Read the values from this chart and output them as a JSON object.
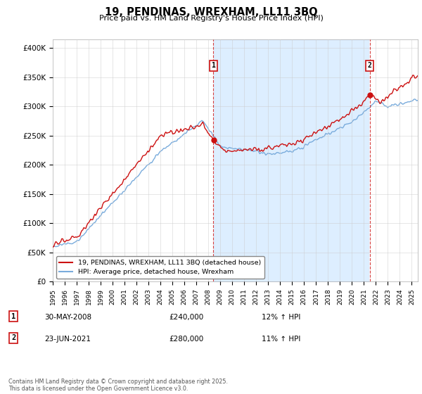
{
  "title": "19, PENDINAS, WREXHAM, LL11 3BQ",
  "subtitle": "Price paid vs. HM Land Registry's House Price Index (HPI)",
  "ylabel_ticks": [
    "£0",
    "£50K",
    "£100K",
    "£150K",
    "£200K",
    "£250K",
    "£300K",
    "£350K",
    "£400K"
  ],
  "ytick_values": [
    0,
    50000,
    100000,
    150000,
    200000,
    250000,
    300000,
    350000,
    400000
  ],
  "ylim": [
    0,
    415000
  ],
  "xlim_start": 1995.0,
  "xlim_end": 2025.5,
  "xticks": [
    1995,
    1996,
    1997,
    1998,
    1999,
    2000,
    2001,
    2002,
    2003,
    2004,
    2005,
    2006,
    2007,
    2008,
    2009,
    2010,
    2011,
    2012,
    2013,
    2014,
    2015,
    2016,
    2017,
    2018,
    2019,
    2020,
    2021,
    2022,
    2023,
    2024,
    2025
  ],
  "hpi_color": "#7aacdc",
  "price_color": "#cc1111",
  "shade_color": "#ddeeff",
  "marker1_x": 2008.42,
  "marker1_y": 240000,
  "marker2_x": 2021.48,
  "marker2_y": 280000,
  "vline1_x": 2008.42,
  "vline2_x": 2021.48,
  "legend_label1": "19, PENDINAS, WREXHAM, LL11 3BQ (detached house)",
  "legend_label2": "HPI: Average price, detached house, Wrexham",
  "annotation1_label": "1",
  "annotation1_date": "30-MAY-2008",
  "annotation1_price": "£240,000",
  "annotation1_hpi": "12% ↑ HPI",
  "annotation2_label": "2",
  "annotation2_date": "23-JUN-2021",
  "annotation2_price": "£280,000",
  "annotation2_hpi": "11% ↑ HPI",
  "footnote": "Contains HM Land Registry data © Crown copyright and database right 2025.\nThis data is licensed under the Open Government Licence v3.0.",
  "background_color": "#ffffff",
  "grid_color": "#cccccc"
}
